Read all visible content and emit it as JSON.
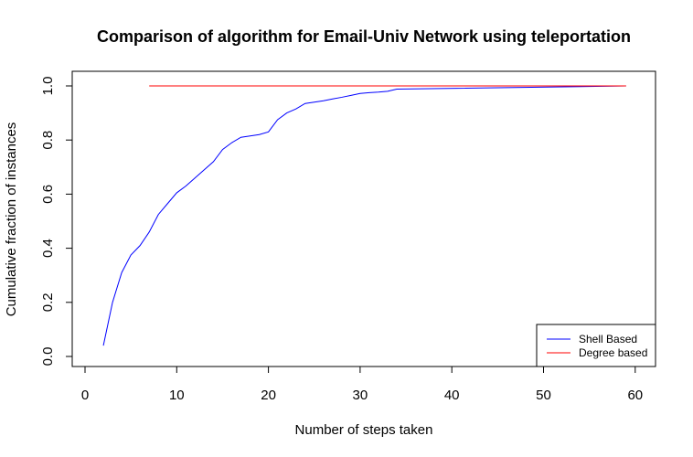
{
  "chart_data": {
    "type": "line",
    "title": "Comparison of algorithm for Email-Univ Network using teleportation",
    "xlabel": "Number of steps taken",
    "ylabel": "Cumulative fraction of instances",
    "xlim": [
      0,
      60
    ],
    "ylim": [
      0,
      1
    ],
    "xticks": [
      0,
      10,
      20,
      30,
      40,
      50,
      60
    ],
    "yticks": [
      "0.0",
      "0.2",
      "0.4",
      "0.6",
      "0.8",
      "1.0"
    ],
    "grid": false,
    "legend_position": "bottom-right",
    "series": [
      {
        "name": "Shell Based",
        "color": "#0000ff",
        "x": [
          2,
          3,
          4,
          5,
          6,
          7,
          8,
          9,
          10,
          11,
          12,
          13,
          14,
          15,
          16,
          17,
          18,
          19,
          20,
          21,
          22,
          23,
          24,
          25,
          26,
          27,
          28,
          29,
          30,
          31,
          32,
          33,
          34,
          59
        ],
        "y": [
          0.04,
          0.2,
          0.31,
          0.375,
          0.41,
          0.46,
          0.525,
          0.565,
          0.605,
          0.63,
          0.66,
          0.69,
          0.72,
          0.765,
          0.79,
          0.81,
          0.815,
          0.82,
          0.83,
          0.875,
          0.9,
          0.915,
          0.935,
          0.94,
          0.945,
          0.952,
          0.958,
          0.965,
          0.972,
          0.975,
          0.977,
          0.98,
          0.988,
          1.0
        ]
      },
      {
        "name": "Degree based",
        "color": "#ff0000",
        "x": [
          7,
          59
        ],
        "y": [
          1.0,
          1.0
        ]
      }
    ]
  }
}
